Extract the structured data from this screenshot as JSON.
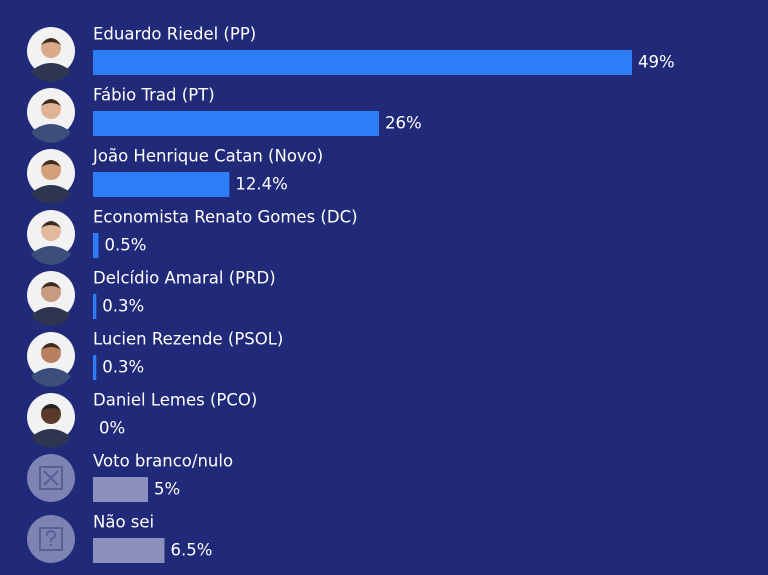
{
  "chart_data": {
    "type": "bar",
    "categories": [
      "Eduardo Riedel (PP)",
      "Fábio Trad (PT)",
      "João Henrique Catan (Novo)",
      "Economista Renato Gomes (DC)",
      "Delcídio Amaral (PRD)",
      "Lucien Rezende (PSOL)",
      "Daniel Lemes (PCO)",
      "Voto branco/nulo",
      "Não sei"
    ],
    "values": [
      49,
      26,
      12.4,
      0.5,
      0.3,
      0.3,
      0,
      5,
      6.5
    ],
    "value_labels": [
      "49%",
      "26%",
      "12.4%",
      "0.5%",
      "0.3%",
      "0.3%",
      "0%",
      "5%",
      "6.5%"
    ],
    "colors": [
      "#2f7df6",
      "#2f7df6",
      "#2f7df6",
      "#2f7df6",
      "#2f7df6",
      "#2f7df6",
      "#2f7df6",
      "#8b90bd",
      "#8b90bd"
    ]
  }
}
